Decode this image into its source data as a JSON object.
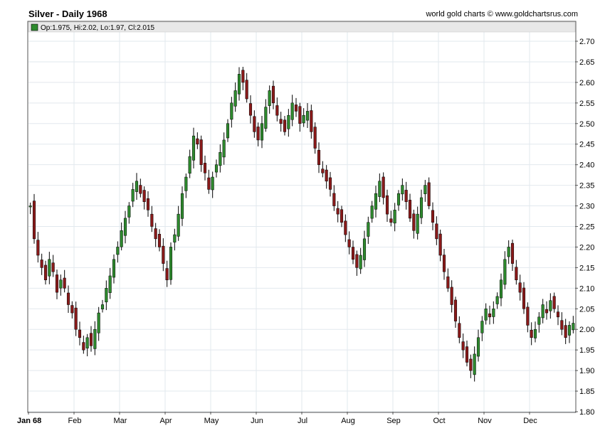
{
  "header": {
    "title": "Silver - Daily 1968",
    "credit": "world gold charts © www.goldchartsrus.com"
  },
  "legend": {
    "text": "Op:1.975, Hi:2.02, Lo:1.97, Cl:2.015",
    "swatch_color": "#2e8b2e"
  },
  "colors": {
    "up": "#2e8b2e",
    "down": "#8b1a1a",
    "grid": "#e2e8ee",
    "frame": "#555555"
  },
  "chart_data": {
    "type": "candlestick",
    "title": "Silver - Daily 1968",
    "ylim": [
      1.8,
      2.72
    ],
    "y_ticks": [
      "2.70",
      "2.65",
      "2.60",
      "2.55",
      "2.50",
      "2.45",
      "2.40",
      "2.35",
      "2.30",
      "2.25",
      "2.20",
      "2.15",
      "2.10",
      "2.05",
      "2.00",
      "1.95",
      "1.90",
      "1.85",
      "1.80"
    ],
    "y_axis_side": "right",
    "grid": true,
    "x_labels": [
      "Jan 68",
      "Feb",
      "Mar",
      "Apr",
      "May",
      "Jun",
      "Jul",
      "Aug",
      "Sep",
      "Oct",
      "Nov",
      "Dec"
    ],
    "last_bar": {
      "open": 1.975,
      "high": 2.02,
      "low": 1.97,
      "close": 2.015
    },
    "closes": [
      2.3,
      2.22,
      2.18,
      2.15,
      2.12,
      2.17,
      2.14,
      2.09,
      2.12,
      2.1,
      2.06,
      2.04,
      2.0,
      1.98,
      1.95,
      1.98,
      1.96,
      2.0,
      2.04,
      2.06,
      2.1,
      2.13,
      2.17,
      2.2,
      2.24,
      2.27,
      2.3,
      2.34,
      2.36,
      2.33,
      2.31,
      2.29,
      2.25,
      2.22,
      2.2,
      2.16,
      2.12,
      2.2,
      2.23,
      2.28,
      2.33,
      2.37,
      2.42,
      2.47,
      2.45,
      2.4,
      2.38,
      2.34,
      2.37,
      2.4,
      2.43,
      2.46,
      2.5,
      2.55,
      2.58,
      2.62,
      2.6,
      2.56,
      2.52,
      2.48,
      2.46,
      2.5,
      2.54,
      2.58,
      2.55,
      2.52,
      2.5,
      2.48,
      2.52,
      2.55,
      2.53,
      2.5,
      2.52,
      2.53,
      2.48,
      2.44,
      2.4,
      2.38,
      2.36,
      2.34,
      2.3,
      2.28,
      2.26,
      2.23,
      2.2,
      2.17,
      2.15,
      2.18,
      2.22,
      2.26,
      2.3,
      2.33,
      2.36,
      2.32,
      2.28,
      2.26,
      2.29,
      2.33,
      2.35,
      2.31,
      2.27,
      2.24,
      2.28,
      2.32,
      2.35,
      2.3,
      2.26,
      2.22,
      2.18,
      2.14,
      2.1,
      2.06,
      2.02,
      1.98,
      1.95,
      1.92,
      1.9,
      1.94,
      1.98,
      2.02,
      2.05,
      2.03,
      2.05,
      2.08,
      2.12,
      2.17,
      2.2,
      2.16,
      2.12,
      2.09,
      2.05,
      2.01,
      1.98,
      2.0,
      2.03,
      2.06,
      2.04,
      2.07,
      2.05,
      2.03,
      2.0,
      1.98,
      2.01,
      2.015
    ]
  }
}
